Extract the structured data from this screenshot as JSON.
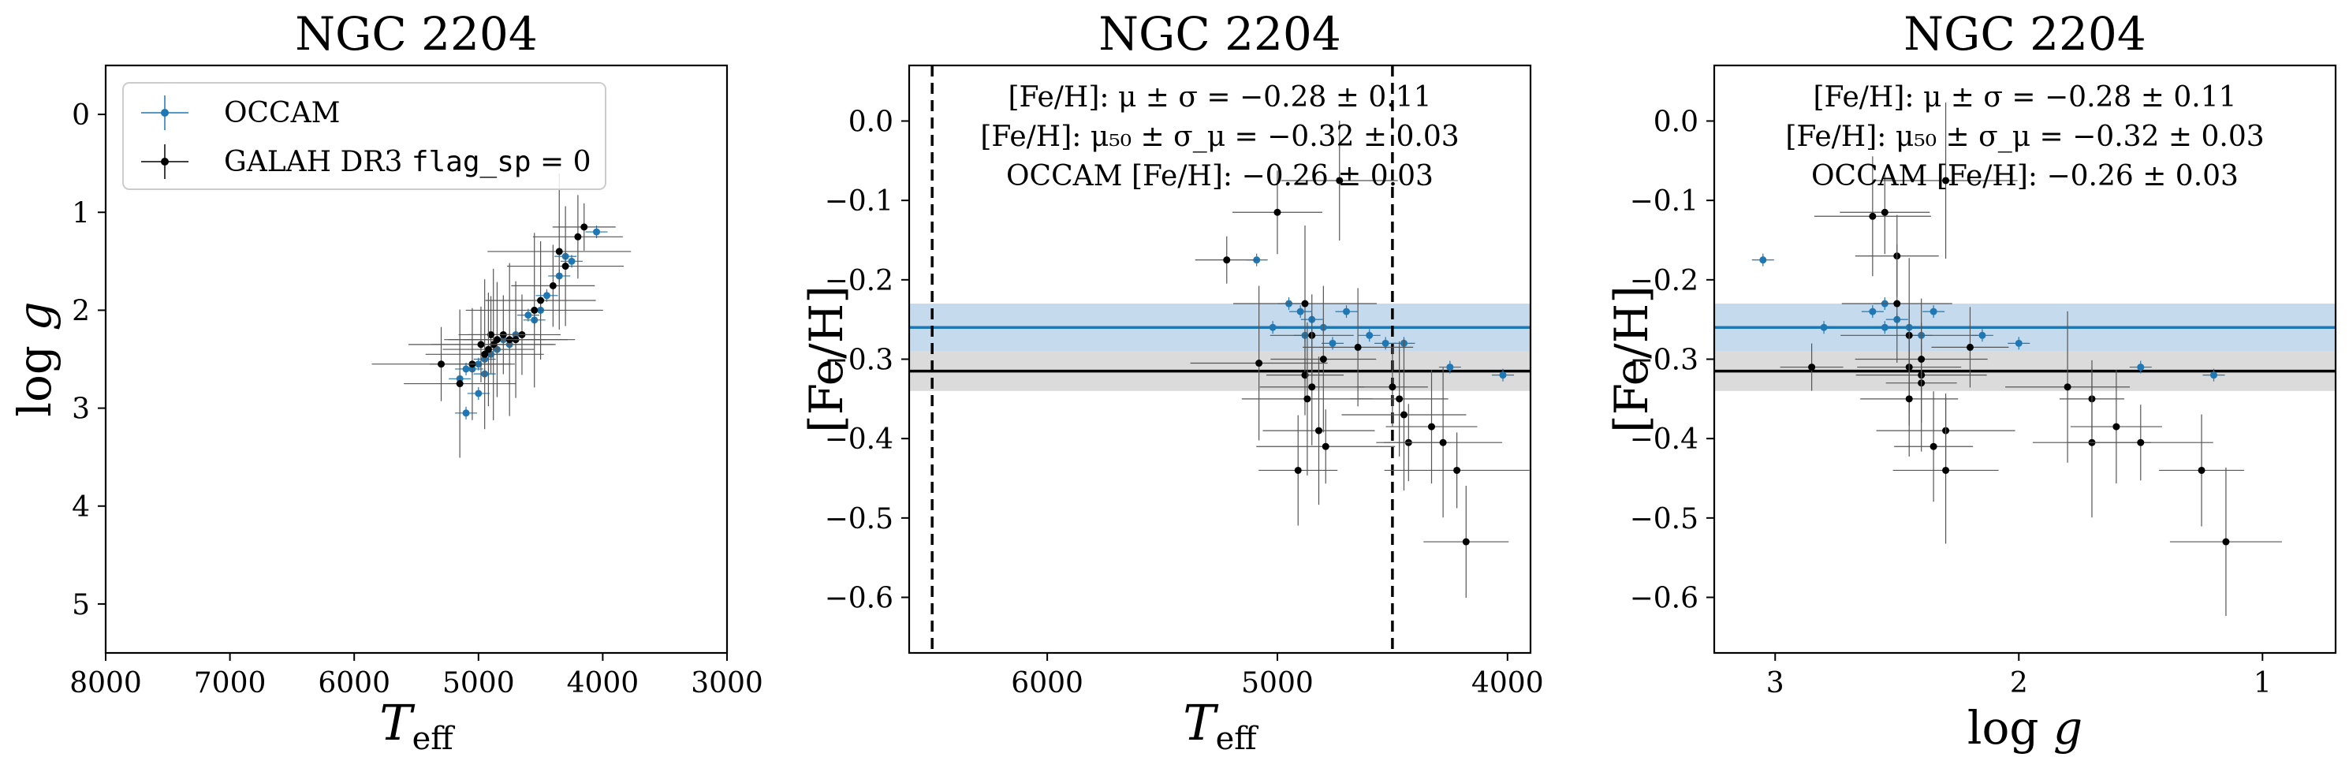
{
  "colors": {
    "occam": "#1f77b4",
    "galah": "#000000",
    "occam_band": "#a6c8e3",
    "galah_band": "#c8c8c8"
  },
  "chart_data": [
    {
      "type": "scatter",
      "title": "NGC 2204",
      "xlabel": "T_eff",
      "ylabel": "log g",
      "xlim": [
        8000,
        3000
      ],
      "ylim": [
        5.5,
        -0.5
      ],
      "xticks": [
        "8000",
        "7000",
        "6000",
        "5000",
        "4000",
        "3000"
      ],
      "yticks": [
        "0",
        "1",
        "2",
        "3",
        "4",
        "5"
      ],
      "legend": {
        "placement": "top-left",
        "entries": [
          {
            "label": "OCCAM",
            "suffix": ""
          },
          {
            "label": "GALAH DR3 ",
            "code": "flag_sp",
            "suffix": " = 0"
          }
        ]
      },
      "series": [
        {
          "name": "OCCAM",
          "points": [
            [
              4050,
              1.2
            ],
            [
              4250,
              1.5
            ],
            [
              4300,
              1.45
            ],
            [
              4350,
              1.65
            ],
            [
              4450,
              1.85
            ],
            [
              4500,
              2.0
            ],
            [
              4550,
              2.1
            ],
            [
              4600,
              2.05
            ],
            [
              4700,
              2.25
            ],
            [
              4750,
              2.35
            ],
            [
              4800,
              2.3
            ],
            [
              4850,
              2.4
            ],
            [
              4900,
              2.45
            ],
            [
              4950,
              2.5
            ],
            [
              5000,
              2.55
            ],
            [
              5050,
              2.6
            ],
            [
              5100,
              2.6
            ],
            [
              5150,
              2.7
            ],
            [
              5000,
              2.85
            ],
            [
              5100,
              3.05
            ],
            [
              4950,
              2.65
            ]
          ]
        },
        {
          "name": "GALAH DR3",
          "points": [
            [
              4150,
              1.15
            ],
            [
              4200,
              1.25
            ],
            [
              4300,
              1.55
            ],
            [
              4350,
              1.4
            ],
            [
              4400,
              1.75
            ],
            [
              4500,
              1.9
            ],
            [
              4550,
              2.0
            ],
            [
              4650,
              2.25
            ],
            [
              4700,
              2.3
            ],
            [
              4750,
              2.3
            ],
            [
              4800,
              2.25
            ],
            [
              4850,
              2.3
            ],
            [
              4880,
              2.35
            ],
            [
              4900,
              2.25
            ],
            [
              4920,
              2.4
            ],
            [
              4950,
              2.45
            ],
            [
              4980,
              2.35
            ],
            [
              5050,
              2.55
            ],
            [
              5150,
              2.75
            ],
            [
              5300,
              2.55
            ]
          ]
        }
      ]
    },
    {
      "type": "scatter",
      "title": "NGC 2204",
      "xlabel": "T_eff",
      "ylabel": "[Fe/H]",
      "xlim": [
        6600,
        3900
      ],
      "ylim": [
        -0.67,
        0.07
      ],
      "xticks": [
        "6000",
        "5000",
        "4000"
      ],
      "yticks": [
        "0.0",
        "−0.1",
        "−0.2",
        "−0.3",
        "−0.4",
        "−0.5",
        "−0.6"
      ],
      "vlines": [
        6500,
        4500
      ],
      "annotations": {
        "line1": "[Fe/H]: μ ± σ = −0.28 ± 0.11",
        "line2": "[Fe/H]: μ₅₀ ± σ_μ = −0.32 ± 0.03",
        "line3": "OCCAM [Fe/H]: −0.26 ± 0.03"
      },
      "bands": [
        {
          "name": "OCCAM",
          "center": -0.26,
          "half_width": 0.03
        },
        {
          "name": "GALAH DR3",
          "center": -0.315,
          "half_width": 0.025
        }
      ],
      "series": [
        {
          "name": "OCCAM",
          "points": [
            [
              5090,
              -0.175
            ],
            [
              4950,
              -0.23
            ],
            [
              4900,
              -0.24
            ],
            [
              4850,
              -0.25
            ],
            [
              4800,
              -0.26
            ],
            [
              4700,
              -0.24
            ],
            [
              4600,
              -0.27
            ],
            [
              4530,
              -0.28
            ],
            [
              4450,
              -0.28
            ],
            [
              4250,
              -0.31
            ],
            [
              4020,
              -0.32
            ],
            [
              5020,
              -0.26
            ],
            [
              4880,
              -0.27
            ],
            [
              4760,
              -0.28
            ]
          ]
        },
        {
          "name": "GALAH DR3",
          "points": [
            [
              5220,
              -0.175
            ],
            [
              5000,
              -0.115
            ],
            [
              4730,
              -0.075
            ],
            [
              4880,
              -0.23
            ],
            [
              4850,
              -0.27
            ],
            [
              4650,
              -0.285
            ],
            [
              5080,
              -0.305
            ],
            [
              4880,
              -0.32
            ],
            [
              4850,
              -0.335
            ],
            [
              4870,
              -0.35
            ],
            [
              4500,
              -0.335
            ],
            [
              4470,
              -0.35
            ],
            [
              4450,
              -0.37
            ],
            [
              4430,
              -0.405
            ],
            [
              4330,
              -0.385
            ],
            [
              4280,
              -0.405
            ],
            [
              4220,
              -0.44
            ],
            [
              4180,
              -0.53
            ],
            [
              4820,
              -0.39
            ],
            [
              4790,
              -0.41
            ],
            [
              4910,
              -0.44
            ],
            [
              4800,
              -0.3
            ]
          ]
        }
      ]
    },
    {
      "type": "scatter",
      "title": "NGC 2204",
      "xlabel": "log g",
      "ylabel": "[Fe/H]",
      "xlim": [
        3.25,
        0.7
      ],
      "ylim": [
        -0.67,
        0.07
      ],
      "xticks": [
        "3",
        "2",
        "1"
      ],
      "yticks": [
        "0.0",
        "−0.1",
        "−0.2",
        "−0.3",
        "−0.4",
        "−0.5",
        "−0.6"
      ],
      "annotations": {
        "line1": "[Fe/H]: μ ± σ = −0.28 ± 0.11",
        "line2": "[Fe/H]: μ₅₀ ± σ_μ = −0.32 ± 0.03",
        "line3": "OCCAM [Fe/H]: −0.26 ± 0.03"
      },
      "bands": [
        {
          "name": "OCCAM",
          "center": -0.26,
          "half_width": 0.03
        },
        {
          "name": "GALAH DR3",
          "center": -0.315,
          "half_width": 0.025
        }
      ],
      "series": [
        {
          "name": "OCCAM",
          "points": [
            [
              3.05,
              -0.175
            ],
            [
              2.8,
              -0.26
            ],
            [
              2.6,
              -0.24
            ],
            [
              2.55,
              -0.23
            ],
            [
              2.5,
              -0.25
            ],
            [
              2.45,
              -0.26
            ],
            [
              2.4,
              -0.27
            ],
            [
              2.35,
              -0.24
            ],
            [
              2.15,
              -0.27
            ],
            [
              2.0,
              -0.28
            ],
            [
              1.5,
              -0.31
            ],
            [
              1.2,
              -0.32
            ],
            [
              2.55,
              -0.26
            ]
          ]
        },
        {
          "name": "GALAH DR3",
          "points": [
            [
              2.85,
              -0.31
            ],
            [
              2.55,
              -0.115
            ],
            [
              2.6,
              -0.12
            ],
            [
              2.3,
              -0.075
            ],
            [
              2.5,
              -0.17
            ],
            [
              2.5,
              -0.23
            ],
            [
              2.45,
              -0.27
            ],
            [
              2.2,
              -0.285
            ],
            [
              2.45,
              -0.31
            ],
            [
              2.4,
              -0.32
            ],
            [
              2.4,
              -0.33
            ],
            [
              2.45,
              -0.35
            ],
            [
              1.8,
              -0.335
            ],
            [
              1.7,
              -0.35
            ],
            [
              1.6,
              -0.385
            ],
            [
              1.7,
              -0.405
            ],
            [
              1.5,
              -0.405
            ],
            [
              1.25,
              -0.44
            ],
            [
              1.15,
              -0.53
            ],
            [
              2.3,
              -0.39
            ],
            [
              2.35,
              -0.41
            ],
            [
              2.3,
              -0.44
            ],
            [
              2.4,
              -0.3
            ]
          ]
        }
      ]
    }
  ]
}
